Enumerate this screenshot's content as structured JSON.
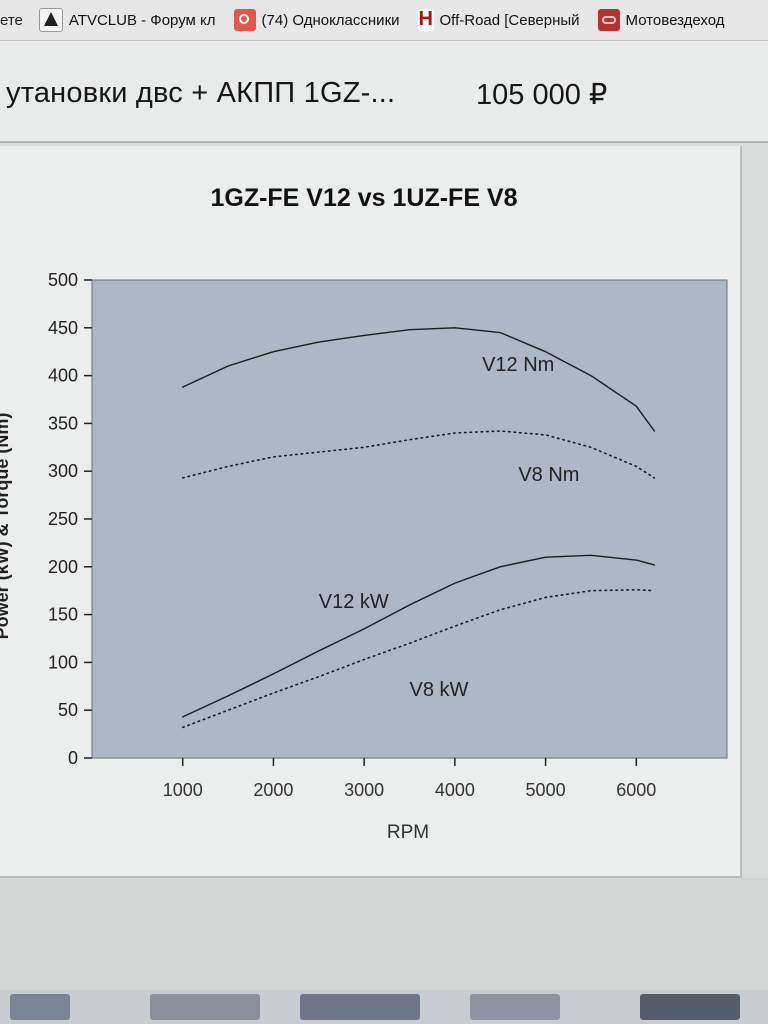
{
  "browser": {
    "bookmarks": [
      {
        "label": "ете",
        "icon": "none"
      },
      {
        "label": "ATVCLUB - Форум кл",
        "icon": "atv-logo-icon"
      },
      {
        "label": "(74) Одноклассники",
        "icon": "odnoklassniki-icon"
      },
      {
        "label": "Off-Road [Северный",
        "icon": "offroad-icon"
      },
      {
        "label": "Мотовездеход",
        "icon": "moto-icon"
      }
    ]
  },
  "listing": {
    "title": "утановки двс + АКПП 1GZ-...",
    "price": "105 000 ₽"
  },
  "chart_data": {
    "type": "line",
    "title": "1GZ-FE V12 vs 1UZ-FE V8",
    "xlabel": "RPM",
    "ylabel": "Power (kW) & Torque (Nm)",
    "xlim": [
      0,
      7000
    ],
    "ylim": [
      0,
      500
    ],
    "xticks": [
      "1000",
      "2000",
      "3000",
      "4000",
      "5000",
      "6000"
    ],
    "yticks": [
      "0",
      "50",
      "100",
      "150",
      "200",
      "250",
      "300",
      "350",
      "400",
      "450",
      "500"
    ],
    "grid": false,
    "plot_background": "#aeb7c6",
    "series": [
      {
        "name": "V12 Nm",
        "style": "solid",
        "x": [
          1000,
          1500,
          2000,
          2500,
          3000,
          3500,
          4000,
          4500,
          5000,
          5500,
          6000,
          6200
        ],
        "y": [
          388,
          410,
          425,
          435,
          442,
          448,
          450,
          445,
          425,
          400,
          368,
          342
        ]
      },
      {
        "name": "V8 Nm",
        "style": "dotted",
        "x": [
          1000,
          1500,
          2000,
          2500,
          3000,
          3500,
          4000,
          4500,
          5000,
          5500,
          6000,
          6200
        ],
        "y": [
          293,
          305,
          315,
          320,
          325,
          333,
          340,
          342,
          338,
          325,
          305,
          293
        ]
      },
      {
        "name": "V12 kW",
        "style": "solid",
        "x": [
          1000,
          1500,
          2000,
          2500,
          3000,
          3500,
          4000,
          4500,
          5000,
          5500,
          6000,
          6200
        ],
        "y": [
          43,
          65,
          88,
          112,
          135,
          160,
          183,
          200,
          210,
          212,
          207,
          202
        ]
      },
      {
        "name": "V8 kW",
        "style": "dotted",
        "x": [
          1000,
          1500,
          2000,
          2500,
          3000,
          3500,
          4000,
          4500,
          5000,
          5500,
          6000,
          6200
        ],
        "y": [
          32,
          50,
          68,
          85,
          103,
          120,
          138,
          155,
          168,
          175,
          176,
          175
        ]
      }
    ],
    "annotations": [
      {
        "text": "V12 Nm",
        "x": 4300,
        "y": 405
      },
      {
        "text": "V8 Nm",
        "x": 4700,
        "y": 290
      },
      {
        "text": "V12 kW",
        "x": 2500,
        "y": 157
      },
      {
        "text": "V8 kW",
        "x": 3500,
        "y": 65
      }
    ]
  }
}
